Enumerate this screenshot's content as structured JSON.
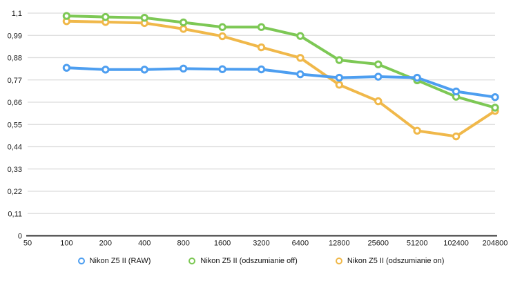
{
  "chart_data": {
    "type": "line",
    "title": "",
    "xlabel": "",
    "ylabel": "",
    "grid": true,
    "legend_position": "bottom",
    "x_axis": {
      "tick_labels": [
        "50",
        "100",
        "200",
        "400",
        "800",
        "1600",
        "3200",
        "6400",
        "12800",
        "25600",
        "51200",
        "102400",
        "204800"
      ]
    },
    "y_axis": {
      "min": 0,
      "max": 1.1,
      "step": 0.11,
      "tick_labels": [
        "0",
        "0,11",
        "0,22",
        "0,33",
        "0,44",
        "0,55",
        "0,66",
        "0,77",
        "0,88",
        "0,99",
        "1,1"
      ]
    },
    "categories": [
      "100",
      "200",
      "400",
      "800",
      "1600",
      "3200",
      "6400",
      "12800",
      "25600",
      "51200",
      "102400",
      "204800"
    ],
    "series": [
      {
        "name": "Nikon Z5 II (RAW)",
        "color": "#4d9ef0",
        "values": [
          0.83,
          0.821,
          0.821,
          0.826,
          0.823,
          0.822,
          0.798,
          0.781,
          0.786,
          0.781,
          0.713,
          0.685
        ]
      },
      {
        "name": "Nikon Z5 II (odszumianie off)",
        "color": "#7dc855",
        "values": [
          1.086,
          1.081,
          1.077,
          1.054,
          1.031,
          1.031,
          0.987,
          0.868,
          0.847,
          0.768,
          0.687,
          0.633
        ]
      },
      {
        "name": "Nikon Z5 II (odszumianie on)",
        "color": "#f0b84a",
        "values": [
          1.06,
          1.056,
          1.051,
          1.022,
          0.986,
          0.931,
          0.879,
          0.746,
          0.665,
          0.519,
          0.491,
          0.617
        ]
      }
    ],
    "colors": {
      "gridline": "#dcdcdc",
      "axis": "#333333",
      "tick_text": "#1a1a1a"
    }
  }
}
